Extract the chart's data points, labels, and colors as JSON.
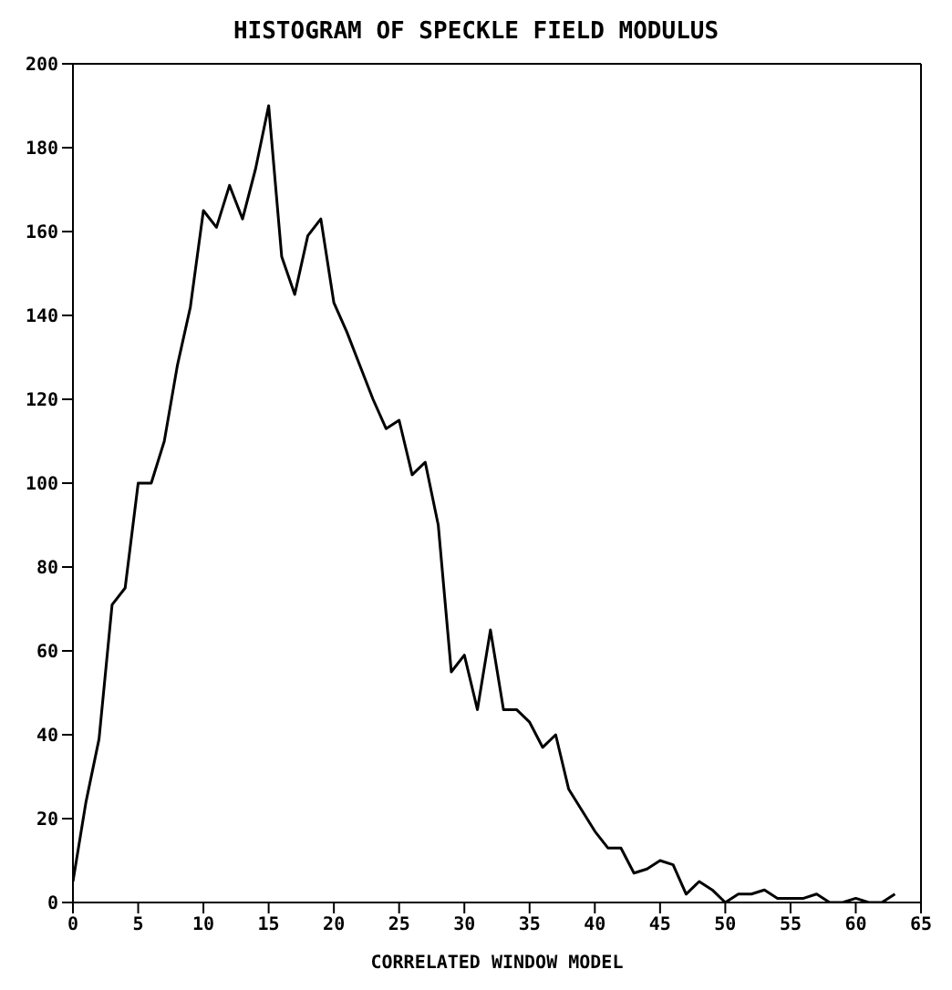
{
  "chart_data": {
    "type": "line",
    "title": "HISTOGRAM OF SPECKLE FIELD MODULUS",
    "xlabel": "CORRELATED WINDOW MODEL",
    "x": [
      0,
      1,
      2,
      3,
      4,
      5,
      6,
      7,
      8,
      9,
      10,
      11,
      12,
      13,
      14,
      15,
      16,
      17,
      18,
      19,
      20,
      21,
      22,
      23,
      24,
      25,
      26,
      27,
      28,
      29,
      30,
      31,
      32,
      33,
      34,
      35,
      36,
      37,
      38,
      39,
      40,
      41,
      42,
      43,
      44,
      45,
      46,
      47,
      48,
      49,
      50,
      51,
      52,
      53,
      54,
      55,
      56,
      57,
      58,
      59,
      60,
      61,
      62,
      63
    ],
    "series": [
      {
        "color": "#000000",
        "values": [
          5,
          24,
          39,
          71,
          75,
          100,
          100,
          110,
          128,
          142,
          165,
          161,
          171,
          163,
          175,
          190,
          154,
          145,
          159,
          163,
          143,
          136,
          128,
          120,
          113,
          115,
          102,
          105,
          90,
          55,
          59,
          46,
          65,
          46,
          46,
          43,
          37,
          40,
          27,
          22,
          17,
          13,
          13,
          7,
          8,
          10,
          9,
          2,
          5,
          3,
          0,
          2,
          2,
          3,
          1,
          1,
          1,
          2,
          0,
          0,
          1,
          0,
          0,
          2
        ]
      }
    ],
    "xlim": [
      0,
      65
    ],
    "xticks": [
      0,
      5,
      10,
      15,
      20,
      25,
      30,
      35,
      40,
      45,
      50,
      55,
      60,
      65
    ],
    "ylim": [
      0,
      200
    ],
    "yticks": [
      0,
      20,
      40,
      60,
      80,
      100,
      120,
      140,
      160,
      180,
      200
    ],
    "grid": false,
    "legend": false,
    "marker": "none",
    "line_style": "solid"
  }
}
